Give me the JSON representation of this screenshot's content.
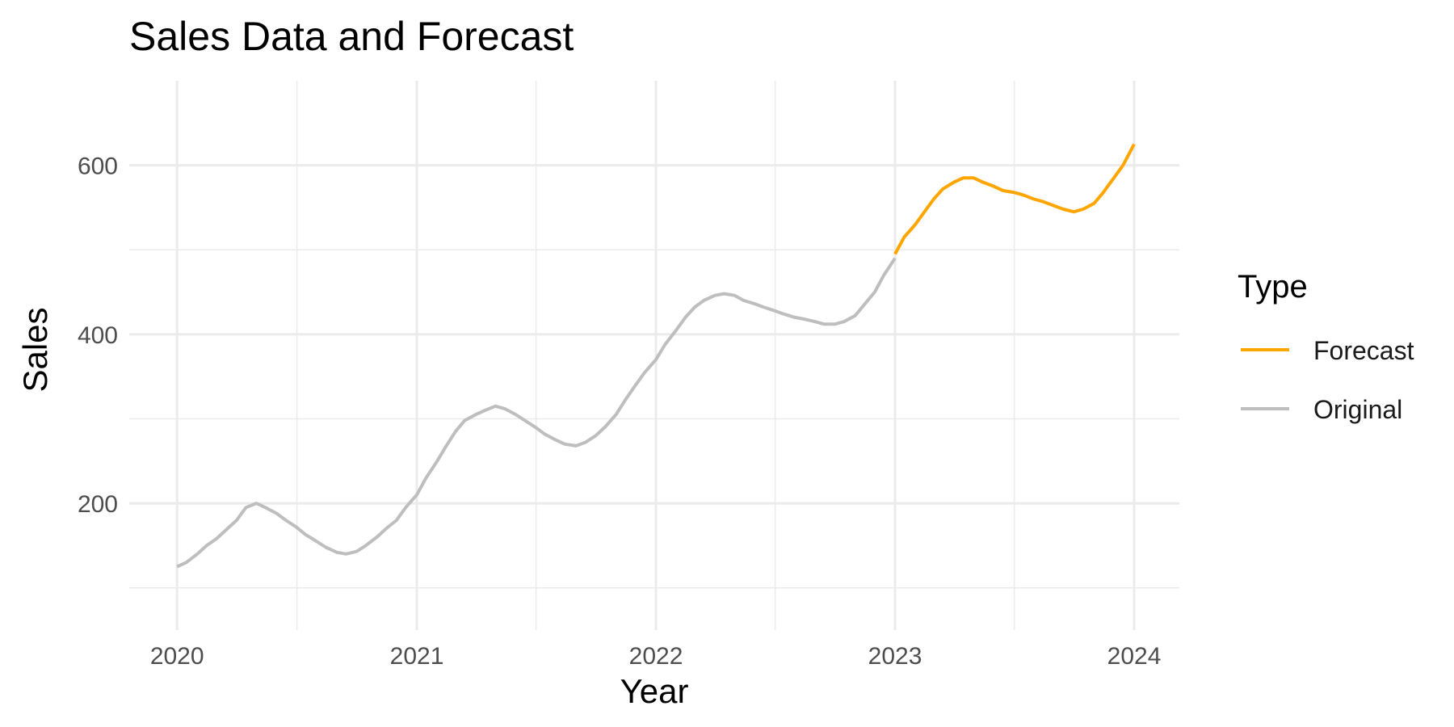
{
  "chart_data": {
    "type": "line",
    "title": "Sales Data and Forecast",
    "xlabel": "Year",
    "ylabel": "Sales",
    "x_ticks": [
      "2020",
      "2021",
      "2022",
      "2023",
      "2024"
    ],
    "y_ticks": [
      200,
      400,
      600
    ],
    "xlim": [
      "2019-10-20",
      "2024-03-10"
    ],
    "ylim": [
      50,
      700
    ],
    "grid": true,
    "legend": {
      "title": "Type",
      "position": "right"
    },
    "series": [
      {
        "name": "Forecast",
        "color": "#FFA500",
        "x": [
          "2023-01-01",
          "2023-01-15",
          "2023-02-01",
          "2023-02-15",
          "2023-03-01",
          "2023-03-15",
          "2023-04-01",
          "2023-04-15",
          "2023-05-01",
          "2023-05-15",
          "2023-06-01",
          "2023-06-15",
          "2023-07-01",
          "2023-07-15",
          "2023-08-01",
          "2023-08-15",
          "2023-09-01",
          "2023-09-15",
          "2023-10-01",
          "2023-10-15",
          "2023-11-01",
          "2023-11-15",
          "2023-12-01",
          "2023-12-15",
          "2024-01-01"
        ],
        "y": [
          495,
          515,
          530,
          545,
          560,
          572,
          580,
          585,
          585,
          580,
          575,
          570,
          568,
          565,
          560,
          557,
          552,
          548,
          545,
          548,
          555,
          568,
          585,
          600,
          625
        ]
      },
      {
        "name": "Original",
        "color": "#BEBEBE",
        "x": [
          "2020-01-01",
          "2020-01-15",
          "2020-02-01",
          "2020-02-15",
          "2020-03-01",
          "2020-03-15",
          "2020-04-01",
          "2020-04-15",
          "2020-05-01",
          "2020-05-15",
          "2020-06-01",
          "2020-06-15",
          "2020-07-01",
          "2020-07-15",
          "2020-08-01",
          "2020-08-15",
          "2020-09-01",
          "2020-09-15",
          "2020-10-01",
          "2020-10-15",
          "2020-11-01",
          "2020-11-15",
          "2020-12-01",
          "2020-12-15",
          "2021-01-01",
          "2021-01-15",
          "2021-02-01",
          "2021-02-15",
          "2021-03-01",
          "2021-03-15",
          "2021-04-01",
          "2021-04-15",
          "2021-05-01",
          "2021-05-15",
          "2021-06-01",
          "2021-06-15",
          "2021-07-01",
          "2021-07-15",
          "2021-08-01",
          "2021-08-15",
          "2021-09-01",
          "2021-09-15",
          "2021-10-01",
          "2021-10-15",
          "2021-11-01",
          "2021-11-15",
          "2021-12-01",
          "2021-12-15",
          "2022-01-01",
          "2022-01-15",
          "2022-02-01",
          "2022-02-15",
          "2022-03-01",
          "2022-03-15",
          "2022-04-01",
          "2022-04-15",
          "2022-05-01",
          "2022-05-15",
          "2022-06-01",
          "2022-06-15",
          "2022-07-01",
          "2022-07-15",
          "2022-08-01",
          "2022-08-15",
          "2022-09-01",
          "2022-09-15",
          "2022-10-01",
          "2022-10-15",
          "2022-11-01",
          "2022-11-15",
          "2022-12-01",
          "2022-12-15",
          "2023-01-01"
        ],
        "y": [
          125,
          130,
          140,
          150,
          158,
          168,
          180,
          195,
          200,
          195,
          188,
          180,
          172,
          163,
          155,
          148,
          142,
          140,
          143,
          150,
          160,
          170,
          180,
          195,
          210,
          230,
          250,
          268,
          285,
          298,
          305,
          310,
          315,
          312,
          305,
          298,
          290,
          282,
          275,
          270,
          268,
          272,
          280,
          290,
          305,
          322,
          340,
          355,
          370,
          388,
          405,
          420,
          432,
          440,
          446,
          448,
          446,
          440,
          436,
          432,
          428,
          424,
          420,
          418,
          415,
          412,
          412,
          415,
          422,
          435,
          450,
          470,
          490
        ]
      }
    ]
  }
}
